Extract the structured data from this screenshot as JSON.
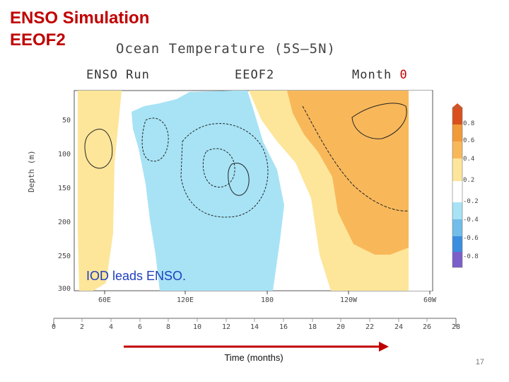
{
  "slide": {
    "title_line1": "ENSO Simulation",
    "title_line2": "EEOF2",
    "page_number": "17"
  },
  "figure": {
    "title": "Ocean Temperature (5S–5N)",
    "panel_left": "ENSO Run",
    "panel_center": "EEOF2",
    "panel_right_prefix": "Month",
    "panel_right_value": "0",
    "y_axis_label": "Depth (m)",
    "y_ticks": [
      "50",
      "100",
      "150",
      "200",
      "250",
      "300"
    ],
    "x_ticks": [
      "60E",
      "120E",
      "180",
      "120W",
      "60W"
    ],
    "colorbar_labels": [
      "0.8",
      "0.6",
      "0.4",
      "0.2",
      "-0.2",
      "-0.4",
      "-0.6",
      "-0.8"
    ],
    "colorbar_colors": [
      "#d9501e",
      "#f19a3a",
      "#f8b85a",
      "#fde69a",
      "#a7e3f5",
      "#72bde9",
      "#3b8de0",
      "#7a5fc9"
    ],
    "annotation": "IOD leads ENSO."
  },
  "timeline": {
    "labels": [
      "0",
      "2",
      "4",
      "6",
      "8",
      "10",
      "12",
      "14",
      "16",
      "18",
      "20",
      "22",
      "24",
      "26",
      "28"
    ],
    "axis_title": "Time (months)",
    "arrow_color": "#c00000"
  }
}
